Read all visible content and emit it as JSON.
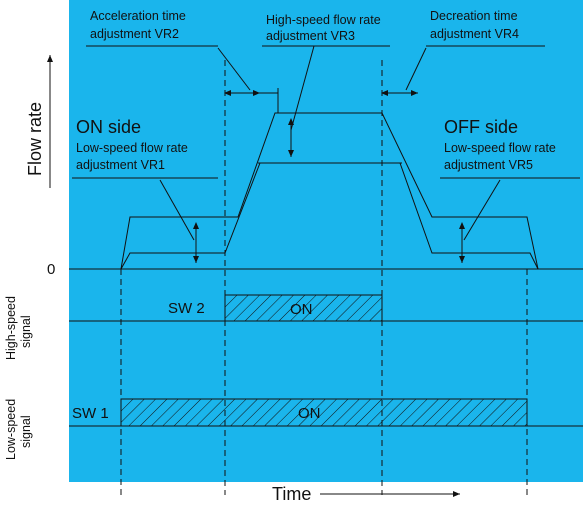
{
  "colors": {
    "panel": "#1ab5ec",
    "ink": "#111111",
    "background": "#ffffff"
  },
  "labels": {
    "y_axis": "Flow rate",
    "x_axis": "Time",
    "zero": "0",
    "on_side": "ON side",
    "off_side": "OFF side",
    "vr1_line1": "Low-speed flow rate",
    "vr1_line2": "adjustment VR1",
    "vr2_line1": "Acceleration time",
    "vr2_line2": "adjustment VR2",
    "vr3_line1": "High-speed flow rate",
    "vr3_line2": "adjustment VR3",
    "vr4_line1": "Decreation time",
    "vr4_line2": "adjustment VR4",
    "vr5_line1": "Low-speed flow rate",
    "vr5_line2": "adjustment VR5",
    "high_signal_line1": "High-speed",
    "high_signal_line2": "signal",
    "low_signal_line1": "Low-speed",
    "low_signal_line2": "signal",
    "sw2": "SW 2",
    "sw1": "SW 1",
    "on_high": "ON",
    "on_low": "ON"
  }
}
